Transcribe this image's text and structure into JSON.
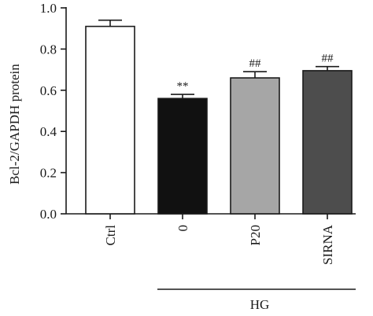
{
  "chart_data": {
    "type": "bar",
    "ylabel": "Bcl-2/GAPDH protein",
    "ylim": [
      0,
      1.0
    ],
    "yticks": [
      "0.0",
      "0.2",
      "0.4",
      "0.6",
      "0.8",
      "1.0"
    ],
    "categories": [
      "Ctrl",
      "0",
      "P20",
      "SIRNA"
    ],
    "values": [
      0.91,
      0.56,
      0.66,
      0.695
    ],
    "errors": [
      0.03,
      0.02,
      0.03,
      0.02
    ],
    "fill_colors": [
      "#ffffff",
      "#111111",
      "#a6a6a6",
      "#4d4d4d"
    ],
    "annotations": [
      "",
      "**",
      "##",
      "##"
    ],
    "group_label": "HG",
    "grid": false
  }
}
